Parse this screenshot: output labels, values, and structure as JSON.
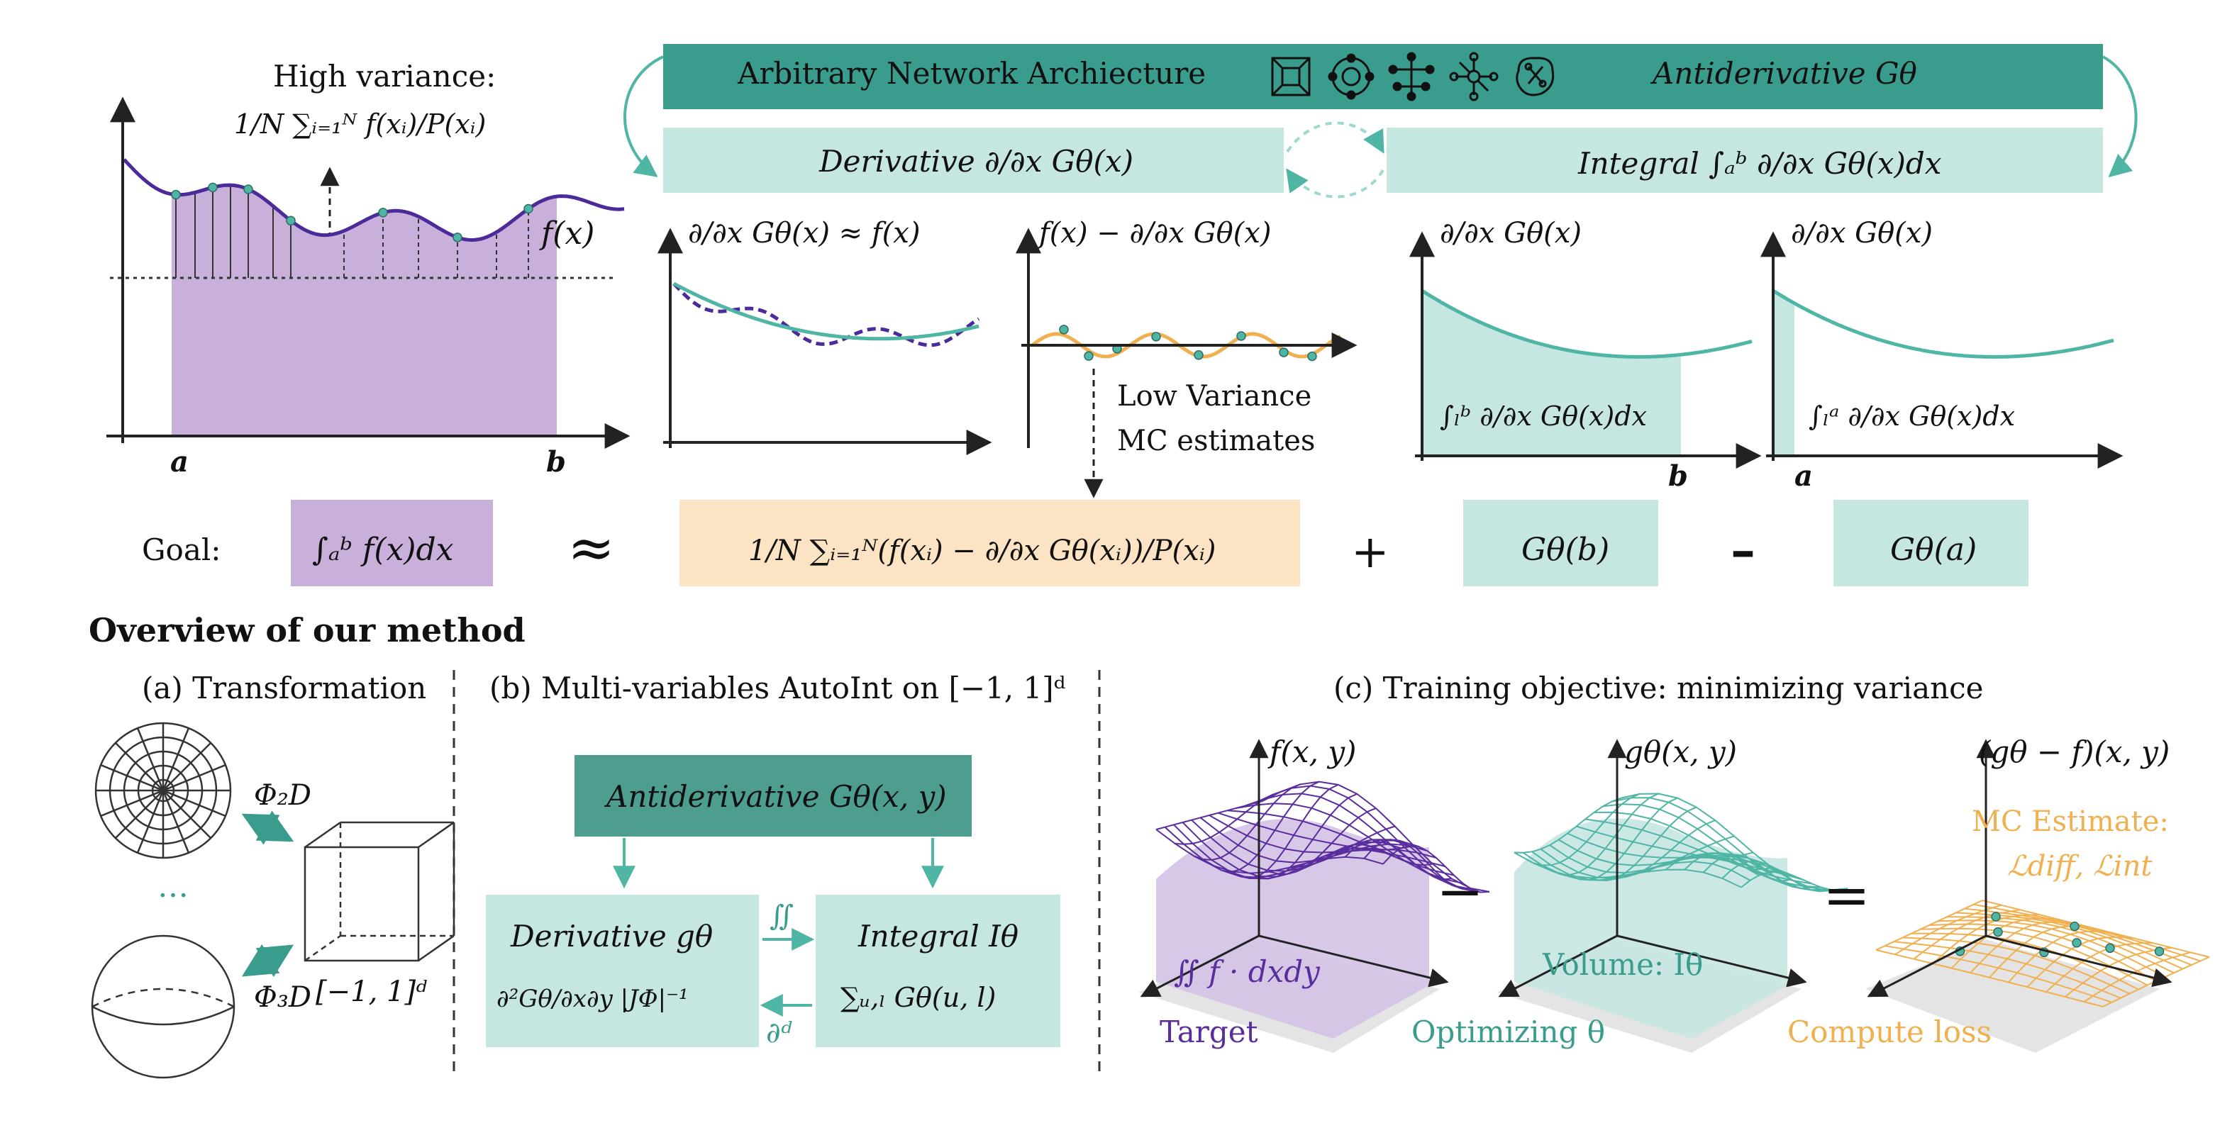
{
  "top": {
    "bar_left": "Arbitrary Network Archiecture",
    "bar_right": "Antiderivative Gθ",
    "derivative_box": "Derivative ∂/∂x Gθ(x)",
    "integral_box": "Integral ∫ₐᵇ ∂/∂x Gθ(x)dx",
    "icons": [
      "network-grid-icon",
      "network-ring-icon",
      "network-tree-icon",
      "network-star-icon",
      "network-brain-icon"
    ]
  },
  "plot1": {
    "title_line1": "High variance:",
    "title_line2": "1/N ∑ᵢ₌₁ᴺ f(xᵢ)/P(xᵢ)",
    "curve_label": "f(x)",
    "a": "a",
    "b": "b"
  },
  "plot2": {
    "title": "∂/∂x Gθ(x) ≈ f(x)"
  },
  "plot3": {
    "title": "f(x) − ∂/∂x Gθ(x)",
    "note_line1": "Low Variance",
    "note_line2": "MC estimates"
  },
  "plot4": {
    "title": "∂/∂x Gθ(x)",
    "area_label": "∫ₗᵇ  ∂/∂x Gθ(x)dx",
    "b": "b"
  },
  "plot5": {
    "title": "∂/∂x Gθ(x)",
    "area_label": "∫ₗᵃ  ∂/∂x Gθ(x)dx",
    "a": "a"
  },
  "goal": {
    "label": "Goal:",
    "integral": "∫ₐᵇ f(x)dx",
    "approx": "≈",
    "mc": "1/N ∑ᵢ₌₁ᴺ(f(xᵢ) − ∂/∂x Gθ(xᵢ))/P(xᵢ)",
    "plus": "+",
    "gb": "Gθ(b)",
    "minus": "–",
    "ga": "Gθ(a)"
  },
  "overview": {
    "title": "Overview of our method",
    "a": {
      "title": "(a) Transformation",
      "phi2d": "Φ₂D",
      "phi3d": "Φ₃D",
      "dots": "…",
      "cube": "[−1, 1]ᵈ"
    },
    "b": {
      "title": "(b) Multi-variables AutoInt on [−1, 1]ᵈ",
      "antideriv": "Antiderivative Gθ(x, y)",
      "deriv_line1": "Derivative gθ",
      "deriv_line2": "∂²Gθ/∂x∂y |JΦ|⁻¹",
      "integral_line1": "Integral Iθ",
      "integral_line2": "∑ᵤ,ₗ Gθ(u, l)",
      "arrow_top": "∬",
      "arrow_bottom": "∂ᵈ"
    },
    "c": {
      "title": "(c) Training objective: minimizing variance",
      "f_label": "f(x, y)",
      "g_label": "gθ(x, y)",
      "diff_label": "(gθ − f)(x, y)",
      "target_integral": "∬ f · dxdy",
      "volume": "Volume: Iθ",
      "mc_line1": "MC Estimate:",
      "mc_line2": "ℒdiff, ℒint",
      "target": "Target",
      "optimizing": "Optimizing θ",
      "compute": "Compute loss",
      "minus": "−",
      "equals": "="
    }
  },
  "colors": {
    "teal_dark": "#3a9c8c",
    "teal_light": "#c6e6e2",
    "teal_curve": "#4fb5a4",
    "purple": "#5a2d9e",
    "purple_fill": "#c9b0da",
    "orange": "#f0b050",
    "peach": "#fbe3c3"
  }
}
